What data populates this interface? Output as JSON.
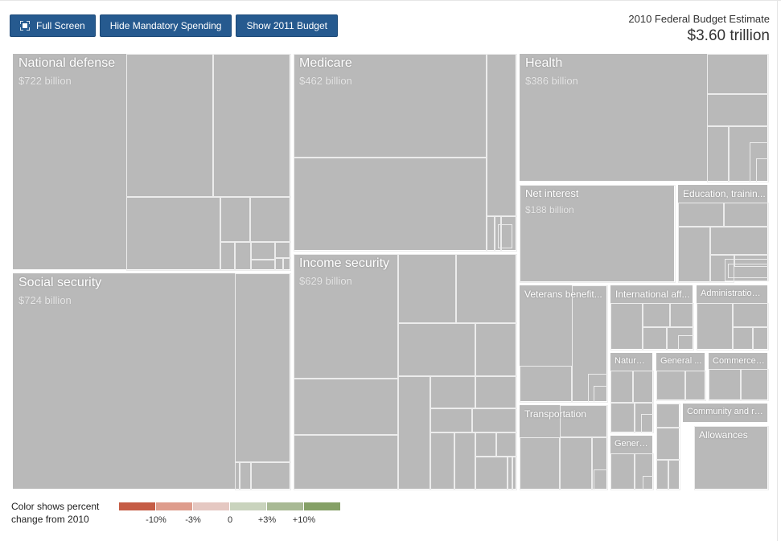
{
  "toolbar": {
    "fullscreen_label": "Full Screen",
    "hide_mandatory_label": "Hide Mandatory Spending",
    "show_2011_label": "Show 2011 Budget"
  },
  "estimate": {
    "title": "2010 Federal Budget Estimate",
    "value": "$3.60 trillion"
  },
  "legend": {
    "title": "Color shows percent change from 2010",
    "colors": [
      "#c55c45",
      "#de9c8c",
      "#e5c8c2",
      "#c9d3bd",
      "#a8b994",
      "#85a066"
    ],
    "ticks": [
      "-10%",
      "-3%",
      "0",
      "+3%",
      "+10%"
    ]
  },
  "chart_data": {
    "type": "treemap",
    "title": "2010 Federal Budget Estimate",
    "total": "$3.60 trillion",
    "categories": [
      {
        "name": "National defense",
        "value_label": "$722 billion",
        "value": 722
      },
      {
        "name": "Social security",
        "value_label": "$724 billion",
        "value": 724
      },
      {
        "name": "Medicare",
        "value_label": "$462 billion",
        "value": 462
      },
      {
        "name": "Income security",
        "value_label": "$629 billion",
        "value": 629
      },
      {
        "name": "Health",
        "value_label": "$386 billion",
        "value": 386
      },
      {
        "name": "Net interest",
        "value_label": "$188 billion",
        "value": 188
      },
      {
        "name": "Education, trainin...",
        "value_label": ""
      },
      {
        "name": "Veterans benefit...",
        "value_label": ""
      },
      {
        "name": "International aff...",
        "value_label": ""
      },
      {
        "name": "Administration ...",
        "value_label": ""
      },
      {
        "name": "Natural...",
        "value_label": ""
      },
      {
        "name": "General ...",
        "value_label": ""
      },
      {
        "name": "Commerce ...",
        "value_label": ""
      },
      {
        "name": "Transportation",
        "value_label": ""
      },
      {
        "name": "Community and re...",
        "value_label": ""
      },
      {
        "name": "General...",
        "value_label": ""
      },
      {
        "name": "",
        "value_label": ""
      },
      {
        "name": "Allowances",
        "value_label": ""
      }
    ]
  }
}
